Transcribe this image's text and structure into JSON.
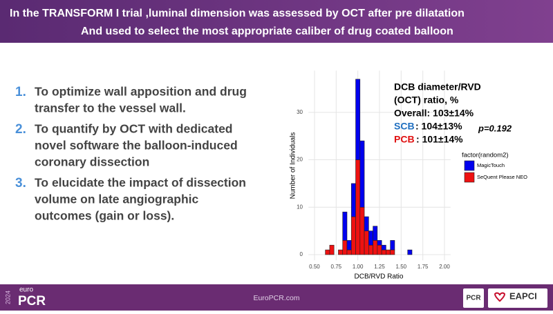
{
  "header": {
    "lines": [
      "In the TRANSFORM I trial ,luminal dimension was assessed by OCT after pre dilatation",
      "And used to select the most appropriate  caliber of drug coated balloon"
    ]
  },
  "list": [
    {
      "number": "1.",
      "lines": [
        "To optimize wall apposition and drug",
        "transfer to the vessel wall."
      ]
    },
    {
      "number": "2.",
      "lines": [
        "To quantify by OCT  with dedicated",
        "novel software the  balloon-induced",
        "coronary dissection"
      ]
    },
    {
      "number": "3.",
      "lines": [
        "To elucidate the impact of dissection",
        "volume on late angiographic",
        "outcomes (gain or loss)."
      ]
    }
  ],
  "chart_data": {
    "type": "histogram",
    "x_label": "DCB/RVD Ratio",
    "y_label": "Number of Individuals",
    "bins": [
      0.625,
      0.675,
      0.725,
      0.775,
      0.825,
      0.875,
      0.925,
      0.975,
      1.025,
      1.075,
      1.125,
      1.175,
      1.225,
      1.275,
      1.325,
      1.375,
      1.425,
      1.475,
      1.525,
      1.575,
      1.625
    ],
    "series": [
      {
        "name": "MagicTouch",
        "color": "#0000ee",
        "values": [
          0,
          0,
          0,
          0,
          6,
          2,
          7,
          17,
          14,
          3,
          3,
          3,
          1,
          1,
          0,
          2,
          0,
          0,
          0,
          1
        ]
      },
      {
        "name": "SeQuent Please NEO",
        "color": "#ee1111",
        "values": [
          1,
          2,
          0,
          1,
          3,
          1,
          8,
          20,
          10,
          5,
          2,
          3,
          2,
          1,
          1,
          1,
          0,
          0,
          0,
          0
        ]
      }
    ],
    "legend_title": "factor(random2)",
    "xlim": [
      0.43,
      2.07
    ],
    "ylim": [
      -1.2,
      38.8
    ],
    "xticks": [
      {
        "value": 0.5,
        "label": "0.50"
      },
      {
        "value": 0.75,
        "label": "0.75"
      },
      {
        "value": 1,
        "label": "1.00"
      },
      {
        "value": 1.25,
        "label": "1.25"
      },
      {
        "value": 1.5,
        "label": "1.50"
      },
      {
        "value": 1.75,
        "label": "1.75"
      },
      {
        "value": 2,
        "label": "2.00"
      }
    ],
    "yticks": [
      0,
      10,
      20,
      30
    ],
    "grid": true,
    "annotations": {
      "title_lines": [
        "DCB diameter/RVD",
        "(OCT) ratio, %"
      ],
      "overall": "Overall: 103±14%",
      "scb_label": "SCB",
      "scb_value": ": 104±13%",
      "pcb_label": "PCB",
      "pcb_value": ": 101±14%",
      "p_value": "p=0.192"
    }
  },
  "footer": {
    "year": "2024",
    "brand_top": "euro",
    "brand": "PCR",
    "url": "EuroPCR.com",
    "logo_left": "PCR",
    "logo_right": "EAPCI"
  }
}
